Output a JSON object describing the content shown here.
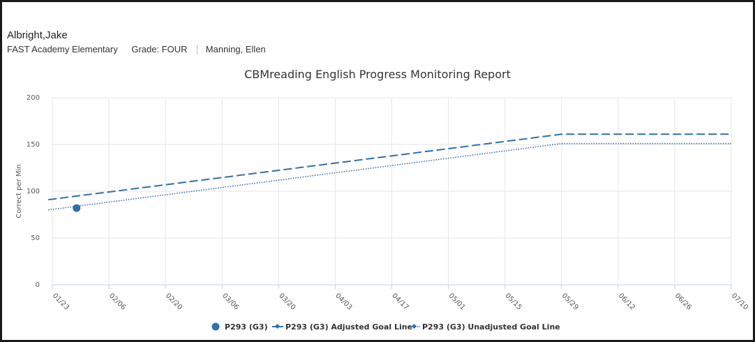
{
  "header": {
    "student_name": "Albright,Jake",
    "school": "FAST Academy Elementary",
    "grade": "Grade: FOUR",
    "teacher": "Manning, Ellen"
  },
  "colors": {
    "series": "#2f6fad",
    "grid": "#e6e6e6",
    "axis": "#c0d0e0"
  },
  "chart_data": {
    "type": "line",
    "title": "CBMreading English Progress Monitoring Report",
    "ylabel": "Correct per Min",
    "xlabel": "",
    "ylim": [
      0,
      200
    ],
    "yticks": [
      0,
      50,
      100,
      150,
      200
    ],
    "xticks": [
      "01/23",
      "02/06",
      "02/20",
      "03/06",
      "03/20",
      "04/03",
      "04/17",
      "05/01",
      "05/15",
      "05/29",
      "06/12",
      "06/26",
      "07/10"
    ],
    "grid": true,
    "legend_position": "bottom",
    "series": [
      {
        "name": "P293 (G3)",
        "style": "marker",
        "points": [
          {
            "x": "01/29",
            "y": 82
          }
        ]
      },
      {
        "name": "P293 (G3) Adjusted Goal Line",
        "style": "dashed",
        "points": [
          {
            "x": "01/22",
            "y": 91
          },
          {
            "x": "05/29",
            "y": 161
          },
          {
            "x": "07/10",
            "y": 161
          }
        ]
      },
      {
        "name": "P293 (G3) Unadjusted Goal Line",
        "style": "dotted",
        "points": [
          {
            "x": "01/22",
            "y": 80
          },
          {
            "x": "05/29",
            "y": 151
          },
          {
            "x": "07/10",
            "y": 151
          }
        ]
      }
    ]
  }
}
